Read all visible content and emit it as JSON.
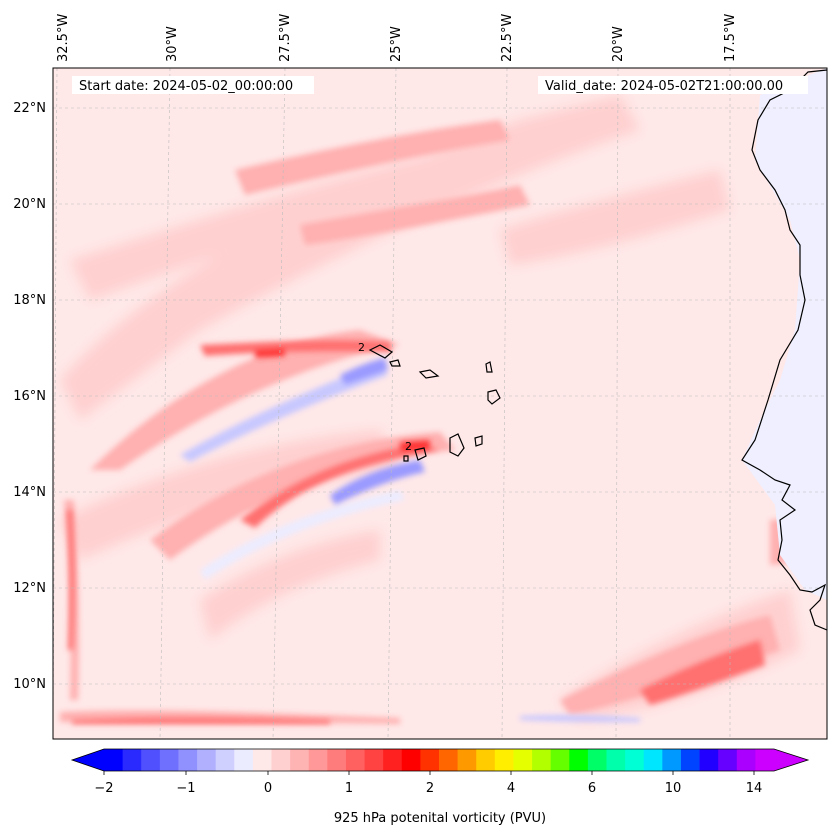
{
  "header": {
    "start_date": "Start date: 2024-05-02_00:00:00",
    "valid_date": "Valid_date: 2024-05-02T21:00:00.00"
  },
  "longitude_labels": [
    "32.5°W",
    "30°W",
    "27.5°W",
    "25°W",
    "22.5°W",
    "20°W",
    "17.5°W"
  ],
  "latitude_labels": [
    "22°N",
    "20°N",
    "18°N",
    "16°N",
    "14°N",
    "12°N",
    "10°N"
  ],
  "contour_labels": [
    "2",
    "2"
  ],
  "colorbar": {
    "label": "925 hPa potenital vorticity (PVU)",
    "tick_labels": [
      "−2",
      "−1",
      "0",
      "1",
      "2",
      "4",
      "6",
      "10",
      "14"
    ],
    "levels": [
      "-2",
      "-1.8",
      "-1.6",
      "-1.4",
      "-1.2",
      "-1",
      "-0.8",
      "-0.6",
      "-0.4",
      "-0.2",
      "0",
      "0.2",
      "0.4",
      "0.6",
      "0.8",
      "1",
      "1.2",
      "1.4",
      "1.6",
      "1.8",
      "2",
      "2.5",
      "3",
      "3.5",
      "4",
      "4.5",
      "5",
      "5.5",
      "6",
      "7",
      "8",
      "9",
      "10",
      "11",
      "12",
      "13",
      "14"
    ],
    "colors": [
      "#0000ff",
      "#2a2aff",
      "#5050ff",
      "#7070ff",
      "#9090ff",
      "#b0b0ff",
      "#d0d0ff",
      "#ececff",
      "#ffe8e8",
      "#ffd0d0",
      "#ffb4b4",
      "#ff9898",
      "#ff7c7c",
      "#ff6060",
      "#ff4242",
      "#ff2020",
      "#ff0000",
      "#ff3200",
      "#ff6600",
      "#ff9900",
      "#ffcc00",
      "#ffee00",
      "#e6ff00",
      "#b2ff00",
      "#66ff00",
      "#00ff00",
      "#00ff66",
      "#00ffaa",
      "#00ffd4",
      "#00e6ff",
      "#0099ff",
      "#0044ff",
      "#2200ff",
      "#6600ff",
      "#aa00ff",
      "#cc00ff"
    ],
    "under_color": "#0000ff",
    "over_color": "#cc00ff"
  },
  "field_colors": {
    "background": "#ffe8e8",
    "light_pink": "#ffd0d0",
    "pink": "#ffb0b0",
    "red": "#ff7070",
    "dark_red": "#ff3030",
    "pale_blue": "#ececff",
    "light_blue": "#c8c8ff",
    "blue": "#9a9aff",
    "land_blue": "#efefff"
  }
}
